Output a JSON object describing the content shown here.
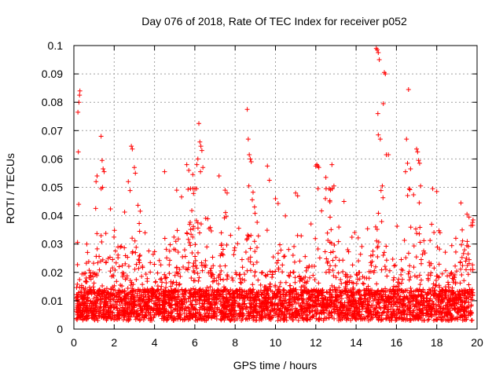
{
  "chart_data": {
    "type": "scatter",
    "title": "Day 076 of 2018, Rate Of TEC Index for receiver p052",
    "xlabel": "GPS time / hours",
    "ylabel": "ROTI / TECUs",
    "xlim": [
      0,
      20
    ],
    "ylim": [
      0,
      0.1
    ],
    "xticks": [
      0,
      2,
      4,
      6,
      8,
      10,
      12,
      14,
      16,
      18,
      20
    ],
    "xtick_labels": [
      "0",
      "2",
      "4",
      "6",
      "8",
      "10",
      "12",
      "14",
      "16",
      "18",
      "20"
    ],
    "yticks": [
      0,
      0.01,
      0.02,
      0.03,
      0.04,
      0.05,
      0.06,
      0.07,
      0.08,
      0.09,
      0.1
    ],
    "ytick_labels": [
      "0",
      "0.01",
      "0.02",
      "0.03",
      "0.04",
      "0.05",
      "0.06",
      "0.07",
      "0.08",
      "0.09",
      "0.1"
    ],
    "grid": true,
    "marker": "+",
    "color": "#ff0000",
    "series": [
      {
        "name": "ROTI",
        "points": [
          [
            0.2,
            0.0765
          ],
          [
            0.25,
            0.08
          ],
          [
            0.28,
            0.0825
          ],
          [
            0.3,
            0.084
          ],
          [
            0.22,
            0.0625
          ],
          [
            0.24,
            0.044
          ],
          [
            1.35,
            0.068
          ],
          [
            1.4,
            0.0595
          ],
          [
            1.45,
            0.0565
          ],
          [
            1.5,
            0.0555
          ],
          [
            1.42,
            0.05
          ],
          [
            1.1,
            0.052
          ],
          [
            1.15,
            0.054
          ],
          [
            2.85,
            0.0645
          ],
          [
            2.9,
            0.0635
          ],
          [
            3.0,
            0.057
          ],
          [
            3.05,
            0.055
          ],
          [
            2.7,
            0.052
          ],
          [
            4.5,
            0.0555
          ],
          [
            5.1,
            0.049
          ],
          [
            5.6,
            0.058
          ],
          [
            5.7,
            0.056
          ],
          [
            5.9,
            0.0545
          ],
          [
            6.2,
            0.0725
          ],
          [
            6.25,
            0.066
          ],
          [
            6.3,
            0.0645
          ],
          [
            6.35,
            0.063
          ],
          [
            6.15,
            0.06
          ],
          [
            6.1,
            0.058
          ],
          [
            6.4,
            0.057
          ],
          [
            6.28,
            0.0555
          ],
          [
            7.2,
            0.054
          ],
          [
            7.5,
            0.049
          ],
          [
            7.6,
            0.048
          ],
          [
            8.6,
            0.0775
          ],
          [
            8.65,
            0.067
          ],
          [
            8.7,
            0.0615
          ],
          [
            8.75,
            0.06
          ],
          [
            8.8,
            0.059
          ],
          [
            8.68,
            0.0505
          ],
          [
            9.6,
            0.0575
          ],
          [
            9.7,
            0.0525
          ],
          [
            10.0,
            0.046
          ],
          [
            11.0,
            0.048
          ],
          [
            11.1,
            0.047
          ],
          [
            12.0,
            0.0575
          ],
          [
            12.05,
            0.058
          ],
          [
            12.1,
            0.0575
          ],
          [
            12.15,
            0.057
          ],
          [
            12.5,
            0.0535
          ],
          [
            12.8,
            0.058
          ],
          [
            12.9,
            0.0505
          ],
          [
            13.4,
            0.045
          ],
          [
            15.0,
            0.099
          ],
          [
            15.05,
            0.0985
          ],
          [
            15.1,
            0.0975
          ],
          [
            15.15,
            0.095
          ],
          [
            15.08,
            0.076
          ],
          [
            15.1,
            0.0685
          ],
          [
            15.2,
            0.067
          ],
          [
            15.4,
            0.0905
          ],
          [
            15.45,
            0.09
          ],
          [
            15.35,
            0.0795
          ],
          [
            15.3,
            0.0505
          ],
          [
            15.5,
            0.0615
          ],
          [
            15.6,
            0.0615
          ],
          [
            16.6,
            0.0845
          ],
          [
            16.5,
            0.067
          ],
          [
            16.55,
            0.0585
          ],
          [
            16.7,
            0.0565
          ],
          [
            16.45,
            0.0555
          ],
          [
            17.0,
            0.0635
          ],
          [
            17.05,
            0.0625
          ],
          [
            17.1,
            0.0595
          ],
          [
            17.15,
            0.0585
          ],
          [
            17.2,
            0.0505
          ],
          [
            17.8,
            0.0495
          ],
          [
            18.0,
            0.0485
          ],
          [
            19.2,
            0.0445
          ],
          [
            19.5,
            0.0405
          ],
          [
            19.6,
            0.0395
          ],
          [
            19.8,
            0.0385
          ],
          [
            19.7,
            0.0365
          ]
        ],
        "notes": "Dense noise band between about 0.003 and 0.02 TECU for the whole 0.1-19.8 h span; scattered points up to about 0.045."
      }
    ]
  }
}
